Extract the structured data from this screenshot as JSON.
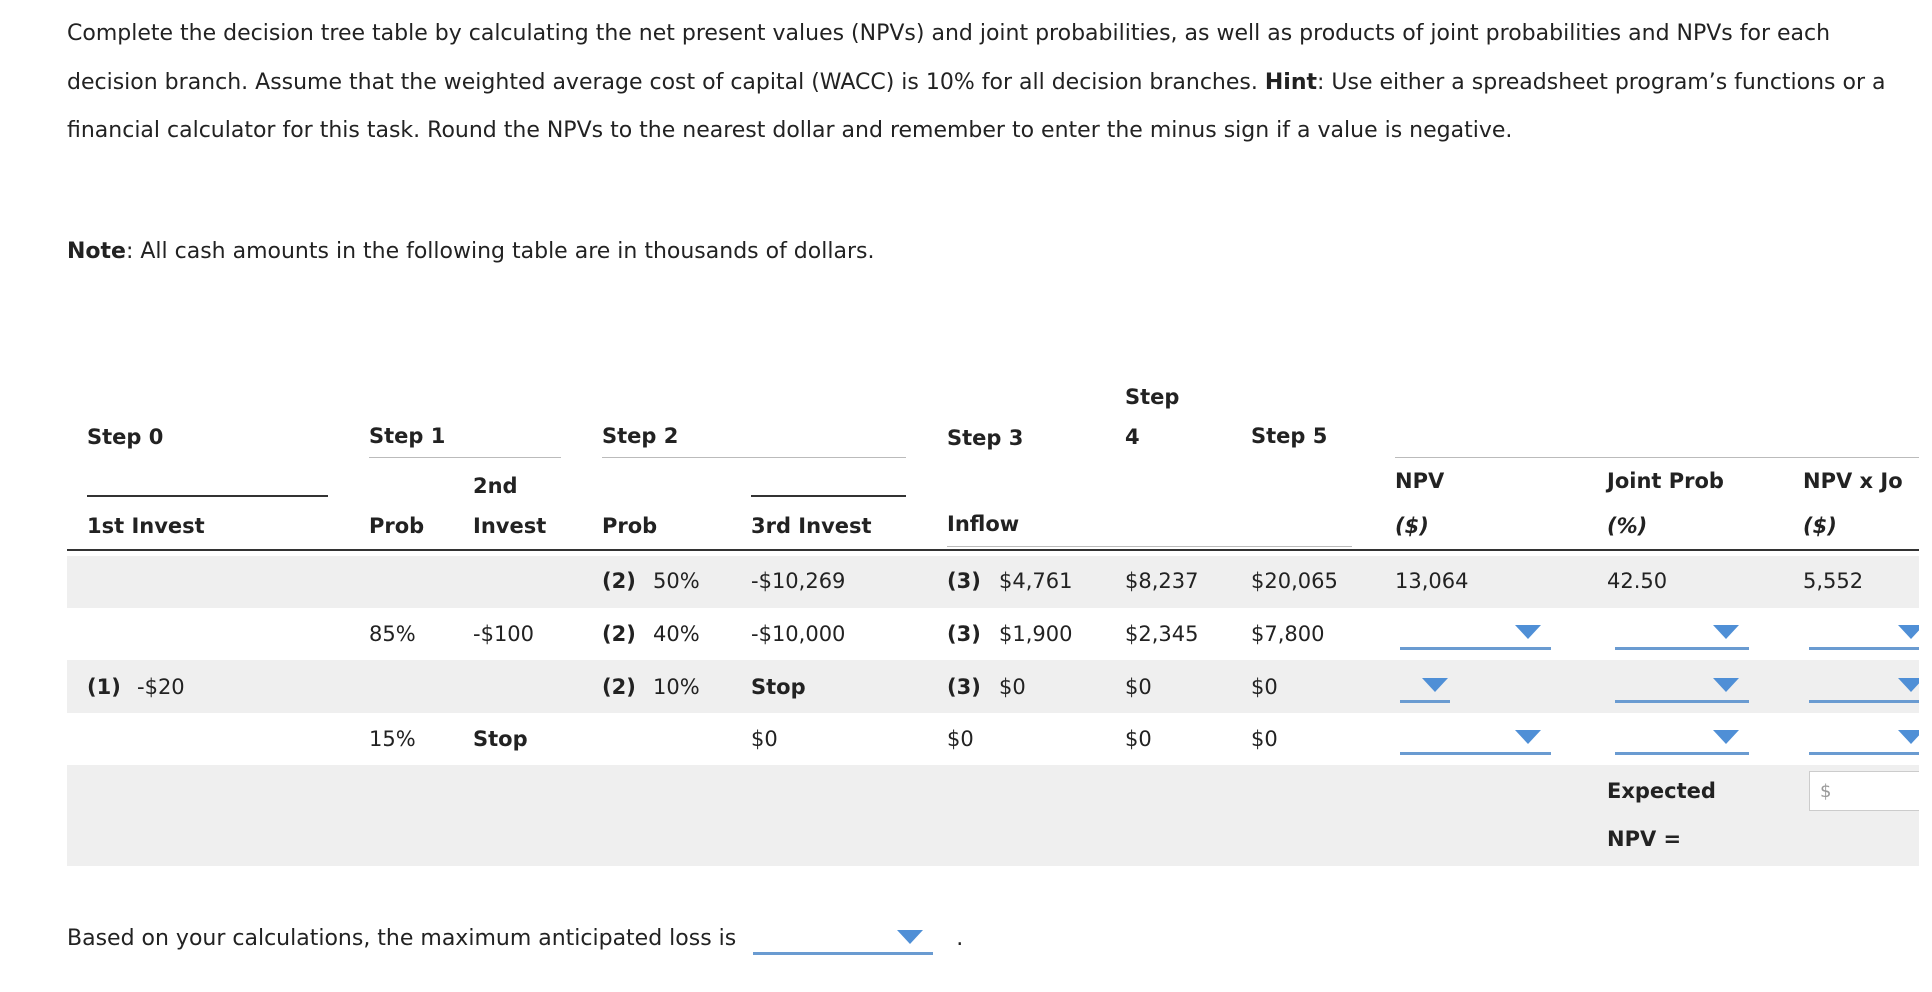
{
  "intro": {
    "text_1": "Complete the decision tree table by calculating the net present values (NPVs) and joint probabilities, as well as products of joint probabilities and NPVs for each decision branch. Assume that the weighted average cost of capital (WACC) is 10% for all decision branches.",
    "hint_label": "Hint",
    "text_2": ": Use either a spreadsheet program’s functions or a financial calculator for this task. Round the NPVs to the nearest dollar and remember to enter the minus sign if a value is negative."
  },
  "note": {
    "label": "Note",
    "text": ": All cash amounts in the following table are in thousands of dollars."
  },
  "table": {
    "headers": {
      "step0": "Step 0",
      "step1": "Step 1",
      "step2": "Step 2",
      "step3": "Step 3",
      "step4": "Step 4",
      "step5": "Step 5",
      "first_invest": "1st Invest",
      "prob1": "Prob",
      "second_invest": "2nd Invest",
      "prob2": "Prob",
      "third_invest": "3rd Invest",
      "inflow": "Inflow",
      "npv": "NPV",
      "npv_unit": "($)",
      "joint_prob": "Joint Prob",
      "joint_prob_unit": "(%)",
      "npv_x_joint": "NPV x Jo",
      "npv_x_joint_unit": "($)"
    },
    "rows": [
      {
        "prob2_tag": "(2)",
        "prob2": "50%",
        "third_invest": "-$10,269",
        "inflow_tag": "(3)",
        "inflow": "$4,761",
        "step4": "$8,237",
        "step5": "$20,065",
        "npv": "13,064",
        "joint_prob": "42.50",
        "npv_x_joint": "5,552"
      },
      {
        "prob1": "85%",
        "second_invest": "-$100",
        "prob2_tag": "(2)",
        "prob2": "40%",
        "third_invest": "-$10,000",
        "inflow_tag": "(3)",
        "inflow": "$1,900",
        "step4": "$2,345",
        "step5": "$7,800"
      },
      {
        "first_invest_tag": "(1)",
        "first_invest": "-$20",
        "prob2_tag": "(2)",
        "prob2": "10%",
        "third_invest": "Stop",
        "inflow_tag": "(3)",
        "inflow": "$0",
        "step4": "$0",
        "step5": "$0"
      },
      {
        "prob1": "15%",
        "second_invest": "Stop",
        "third_invest": "$0",
        "inflow": "$0",
        "step4": "$0",
        "step5": "$0"
      }
    ],
    "expected": {
      "label": "Expected NPV =",
      "currency": "$"
    }
  },
  "footer": {
    "text": "Based on your calculations, the maximum anticipated loss is",
    "end": "."
  }
}
